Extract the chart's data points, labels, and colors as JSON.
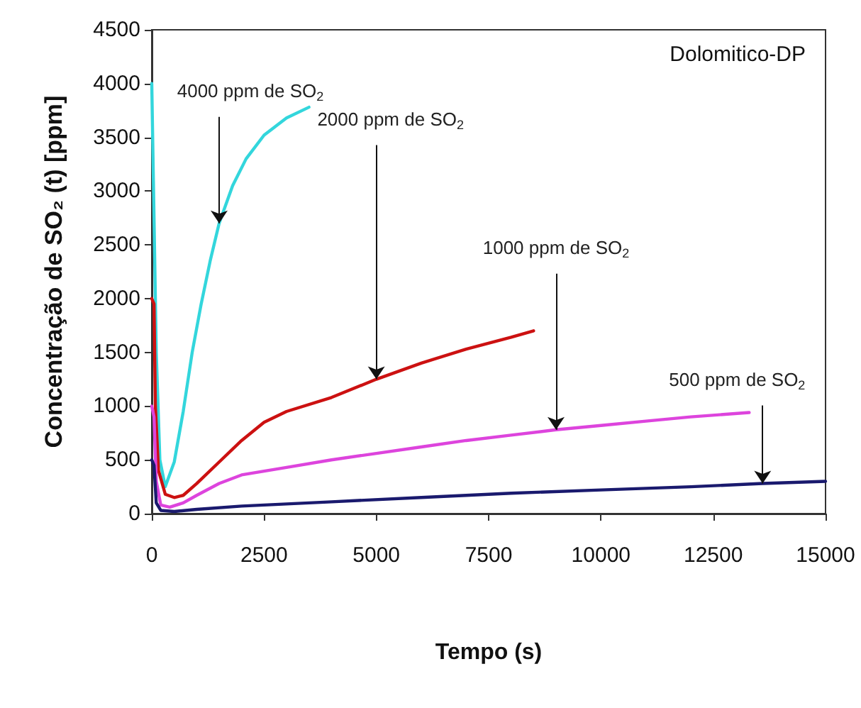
{
  "chart_data": {
    "type": "line",
    "xlabel": "Tempo (s)",
    "ylabel": "Concentração de SO₂ (t) [ppm]",
    "xlim": [
      0,
      15000
    ],
    "xticks": [
      0,
      2500,
      5000,
      7500,
      10000,
      12500,
      15000
    ],
    "ylim": [
      0,
      4500
    ],
    "yticks": [
      0,
      500,
      1000,
      1500,
      2000,
      2500,
      3000,
      3500,
      4000,
      4500
    ],
    "grid": false,
    "legend": false,
    "marker": "none",
    "series": [
      {
        "color": "#33d6dc",
        "x": [
          0,
          40,
          100,
          180,
          300,
          500,
          700,
          900,
          1100,
          1300,
          1500,
          1800,
          2100,
          2500,
          3000,
          3500
        ],
        "values": [
          4000,
          3000,
          1500,
          500,
          250,
          480,
          950,
          1500,
          1950,
          2350,
          2700,
          3050,
          3300,
          3520,
          3680,
          3780
        ]
      },
      {
        "color": "#cc1111",
        "x": [
          0,
          50,
          80,
          150,
          300,
          500,
          700,
          1000,
          1500,
          2000,
          2500,
          3000,
          4000,
          5000,
          6000,
          7000,
          8000,
          8500
        ],
        "values": [
          2000,
          1950,
          1000,
          400,
          180,
          150,
          170,
          280,
          480,
          680,
          850,
          950,
          1080,
          1250,
          1400,
          1530,
          1640,
          1700
        ]
      },
      {
        "color": "#dd44dd",
        "x": [
          0,
          50,
          100,
          200,
          400,
          700,
          1000,
          1500,
          2000,
          3000,
          4000,
          5000,
          6000,
          7000,
          8000,
          9000,
          10000,
          11000,
          12000,
          13300
        ],
        "values": [
          1000,
          900,
          300,
          80,
          60,
          100,
          170,
          280,
          360,
          430,
          500,
          560,
          620,
          680,
          730,
          780,
          820,
          860,
          900,
          940
        ]
      },
      {
        "color": "#1a1a6e",
        "x": [
          0,
          50,
          100,
          200,
          500,
          1000,
          2000,
          4000,
          6000,
          8000,
          10000,
          12000,
          13600,
          15000
        ],
        "values": [
          500,
          450,
          100,
          30,
          20,
          40,
          70,
          110,
          150,
          190,
          220,
          250,
          280,
          300
        ]
      }
    ],
    "annotations": [
      {
        "text": "4000 ppm de SO$_{2}$",
        "x": 1500,
        "y": 2700
      },
      {
        "text": "2000 ppm de SO$_{2}$",
        "x": 5000,
        "y": 1250
      },
      {
        "text": "1000 ppm de SO$_{2}$",
        "x": 9000,
        "y": 780
      },
      {
        "text": "500 ppm de SO$_{2}$",
        "x": 13600,
        "y": 280
      },
      "Dolomitico-DP"
    ]
  }
}
